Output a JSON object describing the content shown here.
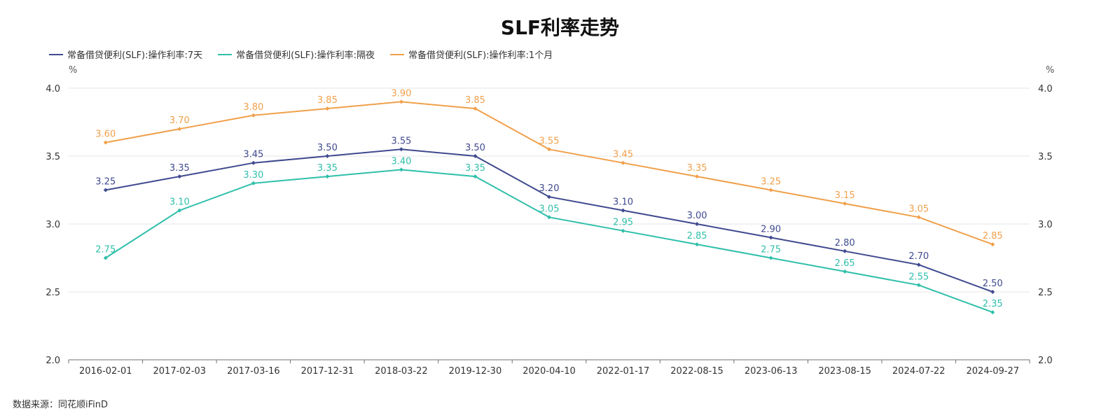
{
  "chart_data": {
    "type": "line",
    "title": "SLF利率走势",
    "y_unit_left": "%",
    "y_unit_right": "%",
    "ylim": [
      2.0,
      4.0
    ],
    "yticks": [
      "2.0",
      "2.5",
      "3.0",
      "3.5",
      "4.0"
    ],
    "grid": true,
    "legend_position": "top-left",
    "categories": [
      "2016-02-01",
      "2017-02-03",
      "2017-03-16",
      "2017-12-31",
      "2018-03-22",
      "2019-12-30",
      "2020-04-10",
      "2022-01-17",
      "2022-08-15",
      "2023-06-13",
      "2023-08-15",
      "2024-07-22",
      "2024-09-27"
    ],
    "series": [
      {
        "name": "常备借贷便利(SLF):操作利率:7天",
        "color": "#3f4a8f",
        "values": [
          3.25,
          3.35,
          3.45,
          3.5,
          3.55,
          3.5,
          3.2,
          3.1,
          3.0,
          2.9,
          2.8,
          2.7,
          2.5
        ]
      },
      {
        "name": "常备借贷便利(SLF):操作利率:隔夜",
        "color": "#2fbfaa",
        "values": [
          2.75,
          3.1,
          3.3,
          3.35,
          3.4,
          3.35,
          3.05,
          2.95,
          2.85,
          2.75,
          2.65,
          2.55,
          2.35
        ]
      },
      {
        "name": "常备借贷便利(SLF):操作利率:1个月",
        "color": "#f0a04b",
        "values": [
          3.6,
          3.7,
          3.8,
          3.85,
          3.9,
          3.85,
          3.55,
          3.45,
          3.35,
          3.25,
          3.15,
          3.05,
          2.85
        ]
      }
    ],
    "source": "数据来源：同花顺iFinD"
  }
}
